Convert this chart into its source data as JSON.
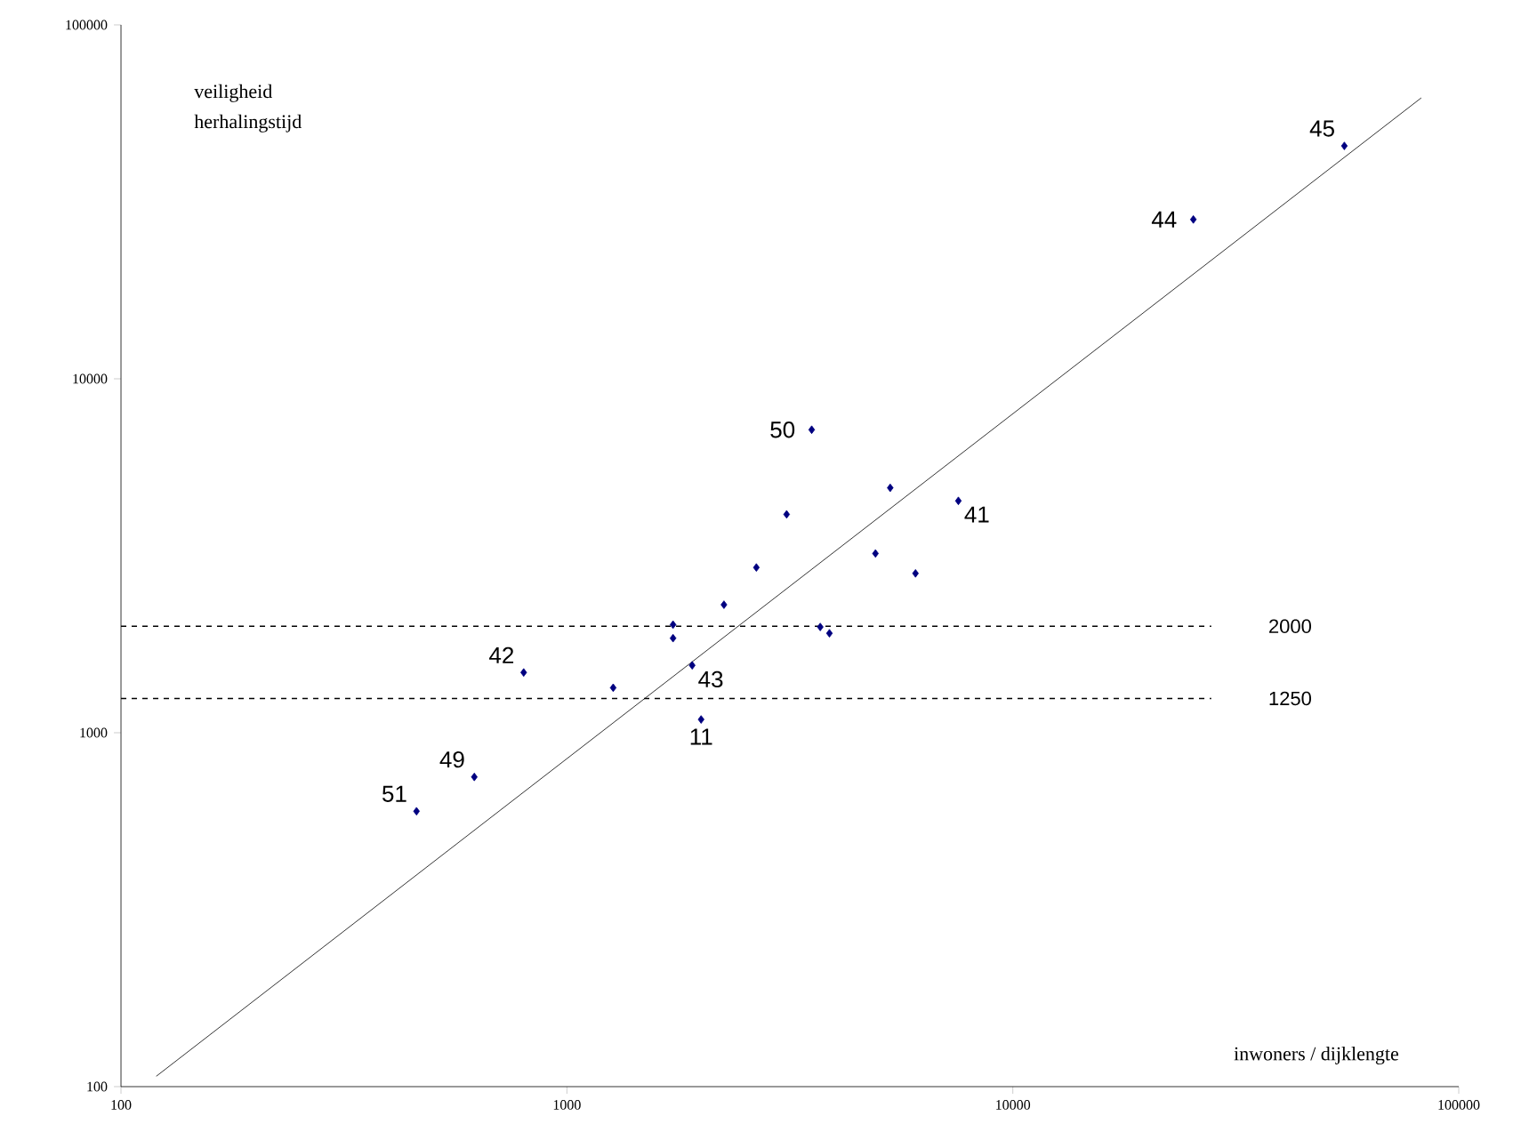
{
  "chart_data": {
    "type": "scatter",
    "xlabel": "inwoners / dijklengte",
    "ylabel": "veiligheid herhalingstijd",
    "log": "xy",
    "xlim": [
      100,
      100000
    ],
    "ylim": [
      100,
      100000
    ],
    "xticks": [
      100,
      1000,
      10000,
      100000
    ],
    "yticks": [
      100,
      1000,
      10000,
      100000
    ],
    "series": [
      {
        "color": "#000080",
        "marker": "diamond",
        "x": [
          3540,
          5310,
          7550,
          3110,
          4920,
          6050,
          2660,
          2250,
          1730,
          1730,
          3700,
          3880,
          1910,
          800,
          1270,
          2000,
          620,
          460,
          25400,
          55400
        ],
        "values": [
          7180,
          4920,
          4520,
          4140,
          3210,
          2820,
          2930,
          2300,
          2020,
          1850,
          1990,
          1910,
          1550,
          1480,
          1340,
          1090,
          750,
          600,
          28200,
          45500
        ]
      },
      {
        "type": "line",
        "color": "#000000",
        "marker": "none",
        "x": [
          120,
          82400
        ],
        "values": [
          107,
          62200
        ]
      }
    ],
    "ref_lines": [
      {
        "axis": "y",
        "value": 2000,
        "label": "2000",
        "line_style": "dashed",
        "color": "#000000"
      },
      {
        "axis": "y",
        "value": 1250,
        "label": "1250",
        "line_style": "dashed",
        "color": "#000000"
      }
    ],
    "annotations": [
      {
        "text": "50",
        "x": 3540,
        "y": 7180
      },
      {
        "text": "41",
        "x": 7550,
        "y": 4520
      },
      {
        "text": "42",
        "x": 800,
        "y": 1480
      },
      {
        "text": "43",
        "x": 1910,
        "y": 1550
      },
      {
        "text": "11",
        "x": 2000,
        "y": 1090
      },
      {
        "text": "49",
        "x": 620,
        "y": 750
      },
      {
        "text": "51",
        "x": 460,
        "y": 600
      },
      {
        "text": "44",
        "x": 25400,
        "y": 28200
      },
      {
        "text": "45",
        "x": 55400,
        "y": 45500
      }
    ]
  }
}
